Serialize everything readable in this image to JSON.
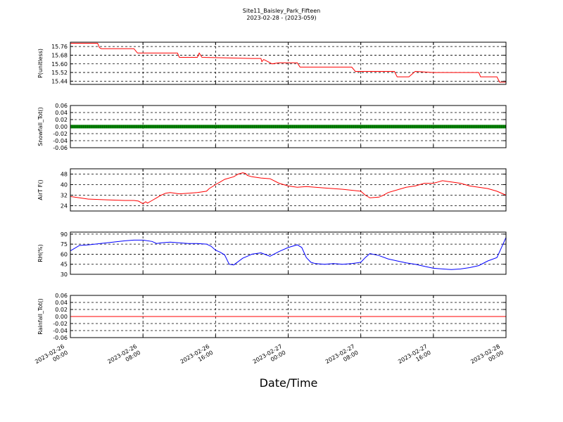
{
  "chart_data": {
    "type": "line",
    "title": "Site11_Baisley_Park_Fifteen",
    "subtitle": "2023-02-28 - (2023-059)",
    "xlabel": "Date/Time",
    "x_ticks": [
      {
        "hours": 0,
        "line1": "2023-02-26",
        "line2": "00:00"
      },
      {
        "hours": 8,
        "line1": "2023-02-26",
        "line2": "08:00"
      },
      {
        "hours": 16,
        "line1": "2023-02-26",
        "line2": "16:00"
      },
      {
        "hours": 24,
        "line1": "2023-02-27",
        "line2": "00:00"
      },
      {
        "hours": 32,
        "line1": "2023-02-27",
        "line2": "08:00"
      },
      {
        "hours": 40,
        "line1": "2023-02-27",
        "line2": "16:00"
      },
      {
        "hours": 48,
        "line1": "2023-02-28",
        "line2": "00:00"
      }
    ],
    "x_range_hours": [
      0,
      48
    ],
    "grid": true,
    "panels": [
      {
        "ylabel": "P(unitless)",
        "color": "#ff0000",
        "ylim": [
          15.41,
          15.8
        ],
        "yticks": [
          "15.44",
          "15.52",
          "15.60",
          "15.68",
          "15.76"
        ],
        "x": [
          0,
          3,
          3.2,
          3.4,
          7,
          7.4,
          11.8,
          12,
          14,
          14.2,
          14.5,
          20,
          21,
          21.1,
          21.3,
          22,
          22.2,
          23,
          24,
          24,
          25,
          25.3,
          25.5,
          28,
          31,
          31.4,
          32,
          35,
          35.7,
          36,
          37,
          37.3,
          38,
          40,
          41,
          42,
          45,
          45.2,
          47,
          47.3,
          47.8,
          48
        ],
        "y": [
          15.79,
          15.79,
          15.75,
          15.74,
          15.74,
          15.7,
          15.7,
          15.66,
          15.66,
          15.7,
          15.66,
          15.65,
          15.65,
          15.62,
          15.64,
          15.61,
          15.6,
          15.61,
          15.61,
          15.61,
          15.61,
          15.57,
          15.57,
          15.57,
          15.57,
          15.53,
          15.53,
          15.53,
          15.53,
          15.48,
          15.48,
          15.48,
          15.53,
          15.52,
          15.52,
          15.52,
          15.52,
          15.48,
          15.48,
          15.43,
          15.43,
          15.43
        ]
      },
      {
        "ylabel": "Snowfall_Tot()",
        "color": "#008000",
        "ylim": [
          -0.06,
          0.06
        ],
        "yticks": [
          "-0.06",
          "-0.04",
          "-0.02",
          "0.00",
          "0.02",
          "0.04",
          "0.06"
        ],
        "markers": true,
        "x": [
          0,
          48
        ],
        "y": [
          0,
          0
        ]
      },
      {
        "ylabel": "AirT F()",
        "color": "#ff0000",
        "ylim": [
          20,
          52
        ],
        "yticks": [
          "24",
          "32",
          "40",
          "48"
        ],
        "x": [
          0,
          1,
          2,
          4,
          6,
          7,
          7.5,
          8,
          8.3,
          8.5,
          9,
          9.5,
          10,
          10.5,
          11,
          12,
          13,
          14,
          15,
          15.3,
          16,
          16.5,
          17,
          18,
          18.5,
          19,
          19.3,
          19.5,
          20,
          21,
          22,
          23,
          24,
          25,
          26,
          27,
          28,
          30,
          32,
          32.5,
          33,
          34,
          34.5,
          35,
          36,
          37,
          38,
          39,
          40,
          40.5,
          41,
          42,
          43,
          44,
          45,
          46,
          47,
          48
        ],
        "y": [
          31,
          30,
          29,
          28.5,
          28,
          28,
          27.5,
          25.5,
          27,
          26,
          28,
          30,
          32,
          33.5,
          34,
          33,
          33.5,
          34,
          35,
          37,
          40,
          42,
          44,
          46,
          48,
          49,
          48.5,
          47,
          46,
          45,
          44.5,
          41,
          39,
          38,
          38.5,
          38,
          37.5,
          36.5,
          35,
          32,
          30,
          30.5,
          32,
          34,
          36,
          38,
          39,
          41,
          41,
          42,
          43,
          42,
          41,
          39,
          38,
          37,
          35,
          32
        ]
      },
      {
        "ylabel": "RH(%)",
        "color": "#0000ff",
        "ylim": [
          30,
          93
        ],
        "yticks": [
          "30",
          "45",
          "60",
          "75",
          "90"
        ],
        "x": [
          0,
          1,
          2,
          4,
          6,
          7,
          7.5,
          8,
          9,
          9.5,
          10,
          11,
          12,
          13,
          14,
          15,
          15.5,
          16,
          16.5,
          17,
          17.5,
          18,
          19,
          19.5,
          20,
          21,
          22,
          23,
          24,
          25,
          25.5,
          26,
          26.5,
          27,
          28,
          29,
          30,
          31,
          32,
          32.5,
          33,
          34,
          35,
          36,
          37,
          38,
          39,
          40,
          41,
          42,
          43,
          44,
          45,
          46,
          47,
          47.5,
          48
        ],
        "y": [
          65,
          73,
          74,
          77,
          80,
          81,
          81,
          81,
          79,
          76,
          77,
          78,
          77,
          76,
          76,
          75,
          72,
          66,
          63,
          59,
          45,
          44,
          54,
          57,
          60,
          62,
          57,
          64,
          70,
          74,
          70,
          55,
          48,
          46,
          45,
          46,
          45,
          46,
          48,
          55,
          61,
          58,
          53,
          50,
          47,
          45,
          42,
          39,
          38,
          37,
          38,
          40,
          43,
          50,
          55,
          70,
          85
        ]
      },
      {
        "ylabel": "Rainfall_Tot()",
        "color": "#ff0000",
        "ylim": [
          -0.06,
          0.06
        ],
        "yticks": [
          "-0.06",
          "-0.04",
          "-0.02",
          "0.00",
          "0.02",
          "0.04",
          "0.06"
        ],
        "x": [
          0,
          48
        ],
        "y": [
          0,
          0
        ]
      }
    ]
  }
}
